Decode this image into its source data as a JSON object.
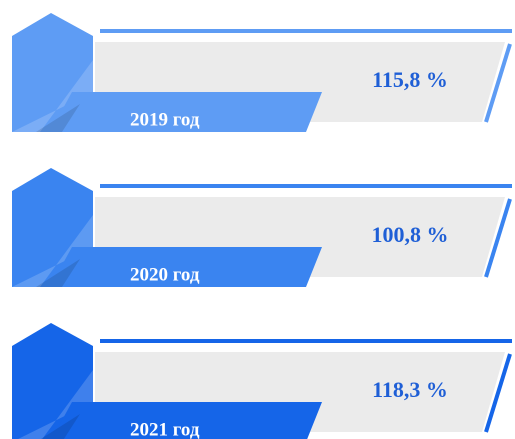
{
  "items": [
    {
      "label": "2019 год",
      "value": "115,8 %",
      "color": "#5e9cf4"
    },
    {
      "label": "2020 год",
      "value": "100,8 %",
      "color": "#3a84f0"
    },
    {
      "label": "2021 год",
      "value": "118,3 %",
      "color": "#1565e8"
    }
  ]
}
